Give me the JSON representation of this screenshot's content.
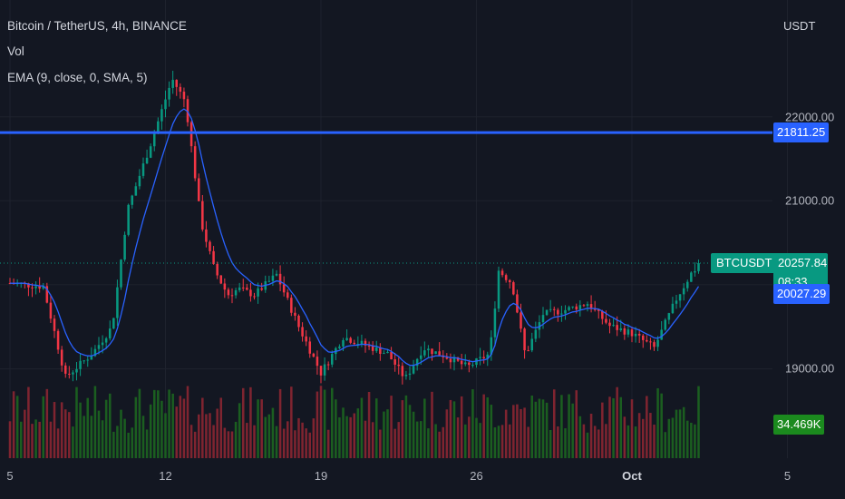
{
  "header": {
    "title": "Bitcoin / TetherUS, 4h, BINANCE",
    "vol": "Vol",
    "ema": "EMA (9, close, 0, SMA, 5)",
    "currency": "USDT"
  },
  "badges": {
    "horizontal_line": "21811.25",
    "symbol": "BTCUSDT",
    "last_price": "20257.84",
    "countdown": "08:33",
    "ema_value": "20027.29",
    "volume": "34.469K"
  },
  "colors": {
    "up": "#089981",
    "down": "#f23645",
    "ema": "#2962ff",
    "hline": "#2962ff",
    "vol_up": "#1b5e20",
    "vol_down": "#7f2430"
  },
  "chart_data": {
    "type": "candlestick",
    "title": "Bitcoin / TetherUS, 4h, BINANCE",
    "interval": "4h",
    "y_ticks": [
      19000,
      20000,
      21000,
      22000
    ],
    "y_tick_labels": [
      "19000.00",
      "",
      "21000.00",
      "22000.00"
    ],
    "ylim": [
      18400,
      22850
    ],
    "x_ticks": [
      "5",
      "12",
      "19",
      "26",
      "Oct",
      "5"
    ],
    "x_tick_days": [
      0,
      7,
      14,
      21,
      28,
      35
    ],
    "horizontal_line": 21811.25,
    "last_price": 20257.84,
    "ema_last": 20027.29,
    "volume_last": "34.469K",
    "price_keypoints": [
      [
        0,
        20020
      ],
      [
        1.5,
        19980
      ],
      [
        2.5,
        18900
      ],
      [
        3.7,
        19180
      ],
      [
        4.6,
        19500
      ],
      [
        5.3,
        20900
      ],
      [
        6.3,
        21650
      ],
      [
        7.3,
        22450
      ],
      [
        7.9,
        22180
      ],
      [
        8.6,
        20750
      ],
      [
        9.2,
        20180
      ],
      [
        9.8,
        19880
      ],
      [
        10.3,
        19950
      ],
      [
        11.0,
        19880
      ],
      [
        12.0,
        20120
      ],
      [
        13.0,
        19500
      ],
      [
        14.0,
        18950
      ],
      [
        15.0,
        19380
      ],
      [
        16.0,
        19280
      ],
      [
        17.0,
        19180
      ],
      [
        17.8,
        18880
      ],
      [
        18.6,
        19250
      ],
      [
        19.6,
        19150
      ],
      [
        20.6,
        19020
      ],
      [
        21.6,
        19180
      ],
      [
        22.0,
        20170
      ],
      [
        22.6,
        20020
      ],
      [
        23.2,
        19160
      ],
      [
        24.0,
        19650
      ],
      [
        25.0,
        19700
      ],
      [
        26.0,
        19780
      ],
      [
        27.0,
        19510
      ],
      [
        28.0,
        19420
      ],
      [
        29.0,
        19250
      ],
      [
        30.0,
        19830
      ],
      [
        30.7,
        20150
      ],
      [
        31.15,
        20257.84
      ]
    ]
  }
}
